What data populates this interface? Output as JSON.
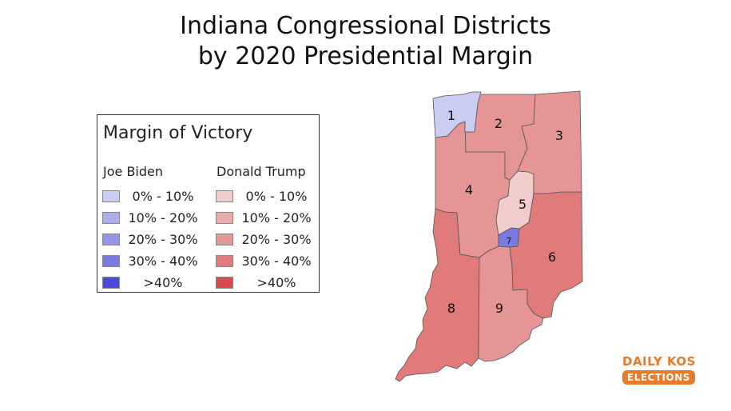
{
  "title": {
    "line1": "Indiana Congressional Districts",
    "line2": "by 2020 Presidential Margin"
  },
  "legend": {
    "title": "Margin of Victory",
    "dem_heading": "Joe Biden",
    "rep_heading": "Donald Trump",
    "dem_items": [
      {
        "label": "0% - 10%",
        "color": "#cbccf1"
      },
      {
        "label": "10% - 20%",
        "color": "#adaeec"
      },
      {
        "label": "20% - 30%",
        "color": "#9495e5"
      },
      {
        "label": "30% - 40%",
        "color": "#7a7be0"
      },
      {
        "label": ">40%",
        "color": "#4b4bda"
      }
    ],
    "rep_items": [
      {
        "label": "0% - 10%",
        "color": "#f1cccc"
      },
      {
        "label": "10% - 20%",
        "color": "#e9acac"
      },
      {
        "label": "20% - 30%",
        "color": "#e59596"
      },
      {
        "label": "30% - 40%",
        "color": "#e07a7b"
      },
      {
        "label": ">40%",
        "color": "#da4a4b"
      }
    ]
  },
  "districts": [
    {
      "number": "1",
      "color": "#cbccf1"
    },
    {
      "number": "2",
      "color": "#e59596"
    },
    {
      "number": "3",
      "color": "#e59596"
    },
    {
      "number": "4",
      "color": "#e59596"
    },
    {
      "number": "5",
      "color": "#f1cccc"
    },
    {
      "number": "6",
      "color": "#e07a7b"
    },
    {
      "number": "7",
      "color": "#7a7be0"
    },
    {
      "number": "8",
      "color": "#e07a7b"
    },
    {
      "number": "9",
      "color": "#e59596"
    }
  ],
  "logo": {
    "top": "DAILY KOS",
    "bottom": "ELECTIONS",
    "color": "#e97a2a"
  }
}
